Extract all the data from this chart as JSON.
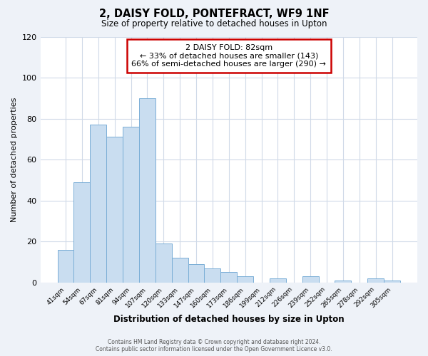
{
  "title": "2, DAISY FOLD, PONTEFRACT, WF9 1NF",
  "subtitle": "Size of property relative to detached houses in Upton",
  "xlabel": "Distribution of detached houses by size in Upton",
  "ylabel": "Number of detached properties",
  "bar_color": "#c9ddf0",
  "bar_edge_color": "#7aaed6",
  "categories": [
    "41sqm",
    "54sqm",
    "67sqm",
    "81sqm",
    "94sqm",
    "107sqm",
    "120sqm",
    "133sqm",
    "147sqm",
    "160sqm",
    "173sqm",
    "186sqm",
    "199sqm",
    "212sqm",
    "226sqm",
    "239sqm",
    "252sqm",
    "265sqm",
    "278sqm",
    "292sqm",
    "305sqm"
  ],
  "values": [
    16,
    49,
    77,
    71,
    76,
    90,
    19,
    12,
    9,
    7,
    5,
    3,
    0,
    2,
    0,
    3,
    0,
    1,
    0,
    2,
    1
  ],
  "ylim": [
    0,
    120
  ],
  "yticks": [
    0,
    20,
    40,
    60,
    80,
    100,
    120
  ],
  "annotation_title": "2 DAISY FOLD: 82sqm",
  "annotation_line1": "← 33% of detached houses are smaller (143)",
  "annotation_line2": "66% of semi-detached houses are larger (290) →",
  "annotation_box_color": "#ffffff",
  "annotation_box_edge_color": "#cc0000",
  "footer_line1": "Contains HM Land Registry data © Crown copyright and database right 2024.",
  "footer_line2": "Contains public sector information licensed under the Open Government Licence v3.0.",
  "background_color": "#eef2f8",
  "plot_bg_color": "#ffffff",
  "grid_color": "#d0dae8"
}
